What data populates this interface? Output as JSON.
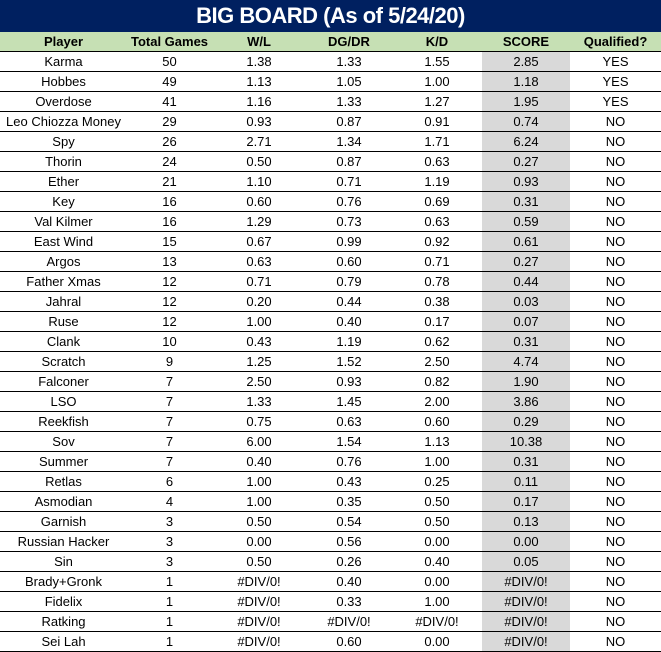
{
  "title": "BIG BOARD (As of 5/24/20)",
  "colors": {
    "title_bg": "#002060",
    "header_bg": "#c6e0b4",
    "score_bg": "#d9d9d9"
  },
  "columns": [
    "Player",
    "Total Games",
    "W/L",
    "DG/DR",
    "K/D",
    "SCORE",
    "Qualified?"
  ],
  "rows": [
    [
      "Karma",
      "50",
      "1.38",
      "1.33",
      "1.55",
      "2.85",
      "YES"
    ],
    [
      "Hobbes",
      "49",
      "1.13",
      "1.05",
      "1.00",
      "1.18",
      "YES"
    ],
    [
      "Overdose",
      "41",
      "1.16",
      "1.33",
      "1.27",
      "1.95",
      "YES"
    ],
    [
      "Leo Chiozza Money",
      "29",
      "0.93",
      "0.87",
      "0.91",
      "0.74",
      "NO"
    ],
    [
      "Spy",
      "26",
      "2.71",
      "1.34",
      "1.71",
      "6.24",
      "NO"
    ],
    [
      "Thorin",
      "24",
      "0.50",
      "0.87",
      "0.63",
      "0.27",
      "NO"
    ],
    [
      "Ether",
      "21",
      "1.10",
      "0.71",
      "1.19",
      "0.93",
      "NO"
    ],
    [
      "Key",
      "16",
      "0.60",
      "0.76",
      "0.69",
      "0.31",
      "NO"
    ],
    [
      "Val Kilmer",
      "16",
      "1.29",
      "0.73",
      "0.63",
      "0.59",
      "NO"
    ],
    [
      "East Wind",
      "15",
      "0.67",
      "0.99",
      "0.92",
      "0.61",
      "NO"
    ],
    [
      "Argos",
      "13",
      "0.63",
      "0.60",
      "0.71",
      "0.27",
      "NO"
    ],
    [
      "Father Xmas",
      "12",
      "0.71",
      "0.79",
      "0.78",
      "0.44",
      "NO"
    ],
    [
      "Jahral",
      "12",
      "0.20",
      "0.44",
      "0.38",
      "0.03",
      "NO"
    ],
    [
      "Ruse",
      "12",
      "1.00",
      "0.40",
      "0.17",
      "0.07",
      "NO"
    ],
    [
      "Clank",
      "10",
      "0.43",
      "1.19",
      "0.62",
      "0.31",
      "NO"
    ],
    [
      "Scratch",
      "9",
      "1.25",
      "1.52",
      "2.50",
      "4.74",
      "NO"
    ],
    [
      "Falconer",
      "7",
      "2.50",
      "0.93",
      "0.82",
      "1.90",
      "NO"
    ],
    [
      "LSO",
      "7",
      "1.33",
      "1.45",
      "2.00",
      "3.86",
      "NO"
    ],
    [
      "Reekfish",
      "7",
      "0.75",
      "0.63",
      "0.60",
      "0.29",
      "NO"
    ],
    [
      "Sov",
      "7",
      "6.00",
      "1.54",
      "1.13",
      "10.38",
      "NO"
    ],
    [
      "Summer",
      "7",
      "0.40",
      "0.76",
      "1.00",
      "0.31",
      "NO"
    ],
    [
      "Retlas",
      "6",
      "1.00",
      "0.43",
      "0.25",
      "0.11",
      "NO"
    ],
    [
      "Asmodian",
      "4",
      "1.00",
      "0.35",
      "0.50",
      "0.17",
      "NO"
    ],
    [
      "Garnish",
      "3",
      "0.50",
      "0.54",
      "0.50",
      "0.13",
      "NO"
    ],
    [
      "Russian Hacker",
      "3",
      "0.00",
      "0.56",
      "0.00",
      "0.00",
      "NO"
    ],
    [
      "Sin",
      "3",
      "0.50",
      "0.26",
      "0.40",
      "0.05",
      "NO"
    ],
    [
      "Brady+Gronk",
      "1",
      "#DIV/0!",
      "0.40",
      "0.00",
      "#DIV/0!",
      "NO"
    ],
    [
      "Fidelix",
      "1",
      "#DIV/0!",
      "0.33",
      "1.00",
      "#DIV/0!",
      "NO"
    ],
    [
      "Ratking",
      "1",
      "#DIV/0!",
      "#DIV/0!",
      "#DIV/0!",
      "#DIV/0!",
      "NO"
    ],
    [
      "Sei Lah",
      "1",
      "#DIV/0!",
      "0.60",
      "0.00",
      "#DIV/0!",
      "NO"
    ]
  ]
}
